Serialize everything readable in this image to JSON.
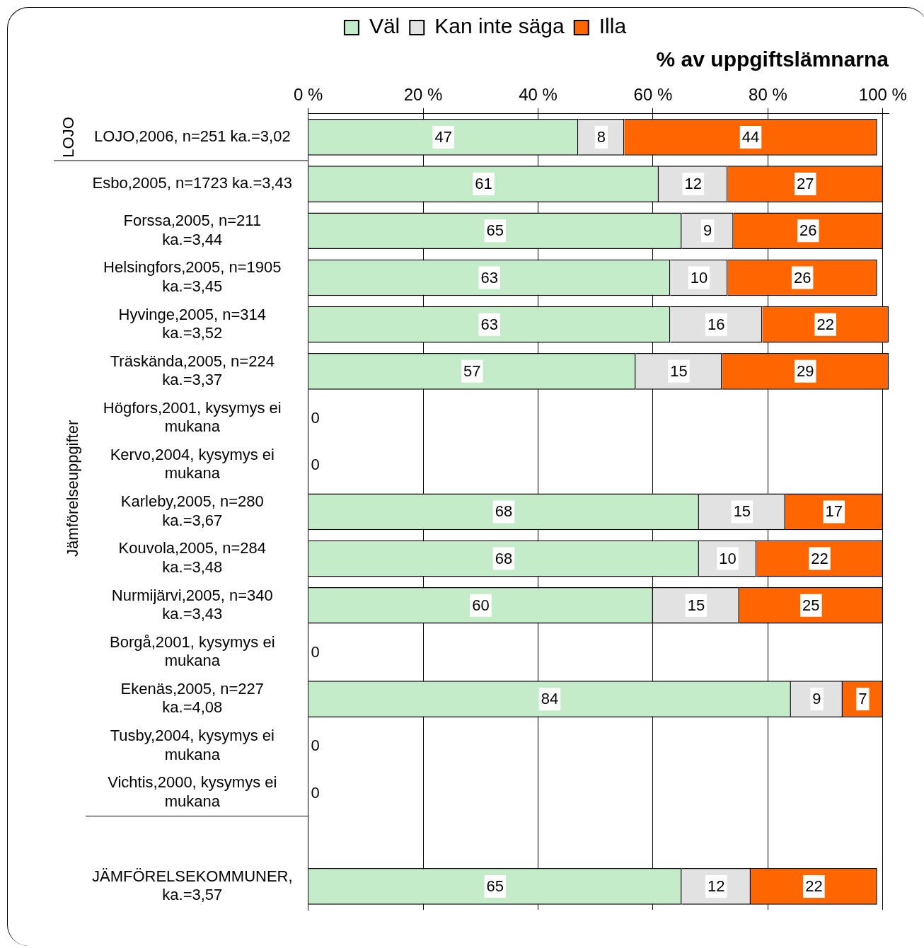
{
  "chart_data": {
    "type": "bar",
    "orientation": "horizontal",
    "stacked": true,
    "xlabel": "% av uppgiftslämnarna",
    "categories": [
      "LOJO,2006, n=251 ka.=3,02",
      "Esbo,2005, n=1723 ka.=3,43",
      "Forssa,2005, n=211 ka.=3,44",
      "Helsingfors,2005, n=1905 ka.=3,45",
      "Hyvinge,2005, n=314 ka.=3,52",
      "Träskända,2005, n=224 ka.=3,37",
      "Högfors,2001, kysymys ei mukana",
      "Kervo,2004, kysymys ei mukana",
      "Karleby,2005, n=280 ka.=3,67",
      "Kouvola,2005, n=284 ka.=3,48",
      "Nurmijärvi,2005, n=340 ka.=3,43",
      "Borgå,2001, kysymys ei mukana",
      "Ekenäs,2005, n=227 ka.=4,08",
      "Tusby,2004, kysymys ei mukana",
      "Vichtis,2000, kysymys ei mukana",
      null,
      "JÄMFÖRELSEKOMMUNER, ka.=3,57"
    ],
    "series": [
      {
        "name": "Väl",
        "color": "#c4ecc8",
        "values": [
          47,
          61,
          65,
          63,
          63,
          57,
          0,
          0,
          68,
          68,
          60,
          0,
          84,
          0,
          0,
          null,
          65
        ]
      },
      {
        "name": "Kan inte säga",
        "color": "#e2e2e2",
        "values": [
          8,
          12,
          9,
          10,
          16,
          15,
          null,
          null,
          15,
          10,
          15,
          null,
          9,
          null,
          null,
          null,
          12
        ]
      },
      {
        "name": "Illa",
        "color": "#ff6600",
        "values": [
          44,
          27,
          26,
          26,
          22,
          29,
          null,
          null,
          17,
          22,
          25,
          null,
          7,
          null,
          null,
          null,
          22
        ]
      }
    ],
    "xlim": [
      0,
      101
    ],
    "xticks": [
      {
        "value": 0,
        "label": "0 %"
      },
      {
        "value": 20,
        "label": "20 %"
      },
      {
        "value": 40,
        "label": "40 %"
      },
      {
        "value": 60,
        "label": "60 %"
      },
      {
        "value": 80,
        "label": "80 %"
      },
      {
        "value": 100,
        "label": "100 %"
      }
    ],
    "grid": "x",
    "legend": "top",
    "data_labels": true,
    "annotations": [
      "LOJO",
      "Jämförelseuppgifter"
    ]
  }
}
